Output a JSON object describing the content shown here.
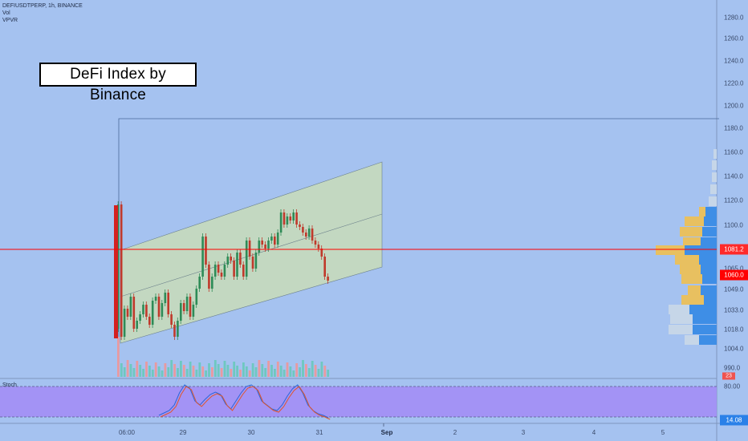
{
  "header": {
    "symbol_line": "DEFIUSDTPERP, 1h, BINANCE",
    "indicator_1": "Vol",
    "indicator_2": "VPVR"
  },
  "annotation": {
    "title": "DeFi Index by Binance"
  },
  "price_axis": {
    "labels": [
      "1280.0",
      "1260.0",
      "1240.0",
      "1220.0",
      "1200.0",
      "1180.0",
      "1160.0",
      "1140.0",
      "1120.0",
      "1100.0",
      "1081.2",
      "1065.0",
      "1060.0",
      "1049.0",
      "1033.0",
      "1018.0",
      "1004.0",
      "990.0"
    ],
    "current_price_tag": "1081.2",
    "last_price_tag": "1060.0",
    "volume_tag": "23"
  },
  "stoch_panel": {
    "label": "Stoch",
    "upper_band": "80.00",
    "value_tag": "14.08"
  },
  "time_axis": {
    "labels": [
      "06:00",
      "29",
      "30",
      "31",
      "Sep",
      "2",
      "3",
      "4",
      "5"
    ]
  },
  "colors": {
    "background": "#a5c2f0",
    "bull": "#2e8b57",
    "bear": "#c0392b",
    "horizontal_line": "#ff0000",
    "channel_fill": "#c8dcb8",
    "stoch_band": "#a38ef5"
  }
}
